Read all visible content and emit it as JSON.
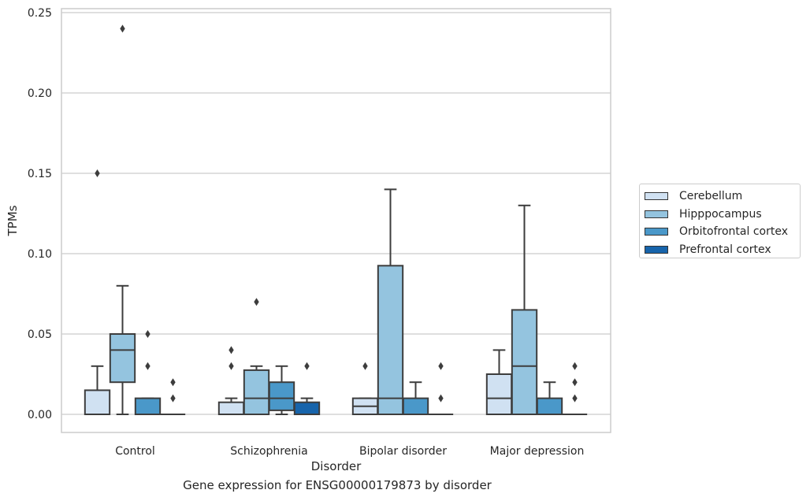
{
  "caption": "Gene expression for ENSG00000179873 by disorder",
  "chart_data": {
    "type": "box",
    "xlabel": "Disorder",
    "ylabel": "TPMs",
    "ylim": [
      -0.011,
      0.252
    ],
    "yticks": [
      "0.00",
      "0.05",
      "0.10",
      "0.15",
      "0.20",
      "0.25"
    ],
    "grid": true,
    "legend_position": "right",
    "categories": [
      "Control",
      "Schizophrenia",
      "Bipolar disorder",
      "Major depression"
    ],
    "series": [
      {
        "name": "Cerebellum",
        "color": "#d0e1f2",
        "boxes": [
          {
            "whislo": 0.0,
            "q1": 0.0,
            "med": 0.0,
            "q3": 0.015,
            "whishi": 0.03,
            "fliers": [
              0.15
            ]
          },
          {
            "whislo": 0.0,
            "q1": 0.0,
            "med": 0.0,
            "q3": 0.0075,
            "whishi": 0.01,
            "fliers": [
              0.03,
              0.04
            ]
          },
          {
            "whislo": 0.0,
            "q1": 0.0,
            "med": 0.005,
            "q3": 0.01,
            "whishi": 0.01,
            "fliers": [
              0.03
            ]
          },
          {
            "whislo": 0.0,
            "q1": 0.0,
            "med": 0.01,
            "q3": 0.025,
            "whishi": 0.04,
            "fliers": []
          }
        ]
      },
      {
        "name": "Hipppocampus",
        "color": "#94c4df",
        "boxes": [
          {
            "whislo": 0.0,
            "q1": 0.02,
            "med": 0.04,
            "q3": 0.05,
            "whishi": 0.08,
            "fliers": [
              0.24
            ]
          },
          {
            "whislo": 0.0,
            "q1": 0.0,
            "med": 0.01,
            "q3": 0.0275,
            "whishi": 0.03,
            "fliers": [
              0.07
            ]
          },
          {
            "whislo": 0.0,
            "q1": 0.0,
            "med": 0.01,
            "q3": 0.0925,
            "whishi": 0.14,
            "fliers": []
          },
          {
            "whislo": 0.0,
            "q1": 0.0,
            "med": 0.03,
            "q3": 0.065,
            "whishi": 0.13,
            "fliers": []
          }
        ]
      },
      {
        "name": "Orbitofrontal cortex",
        "color": "#4a98c9",
        "boxes": [
          {
            "whislo": 0.0,
            "q1": 0.0,
            "med": 0.0,
            "q3": 0.01,
            "whishi": 0.01,
            "fliers": [
              0.03,
              0.05
            ]
          },
          {
            "whislo": 0.0,
            "q1": 0.0025,
            "med": 0.01,
            "q3": 0.02,
            "whishi": 0.03,
            "fliers": []
          },
          {
            "whislo": 0.0,
            "q1": 0.0,
            "med": 0.0,
            "q3": 0.01,
            "whishi": 0.02,
            "fliers": []
          },
          {
            "whislo": 0.0,
            "q1": 0.0,
            "med": 0.0,
            "q3": 0.01,
            "whishi": 0.02,
            "fliers": []
          }
        ]
      },
      {
        "name": "Prefrontal cortex",
        "color": "#1764ab",
        "boxes": [
          {
            "whislo": 0.0,
            "q1": 0.0,
            "med": 0.0,
            "q3": 0.0,
            "whishi": 0.0,
            "fliers": [
              0.01,
              0.02
            ]
          },
          {
            "whislo": 0.0,
            "q1": 0.0,
            "med": 0.0,
            "q3": 0.0075,
            "whishi": 0.01,
            "fliers": [
              0.03
            ]
          },
          {
            "whislo": 0.0,
            "q1": 0.0,
            "med": 0.0,
            "q3": 0.0,
            "whishi": 0.0,
            "fliers": [
              0.01,
              0.03
            ]
          },
          {
            "whislo": 0.0,
            "q1": 0.0,
            "med": 0.0,
            "q3": 0.0,
            "whishi": 0.0,
            "fliers": [
              0.01,
              0.02,
              0.03
            ]
          }
        ]
      }
    ]
  }
}
